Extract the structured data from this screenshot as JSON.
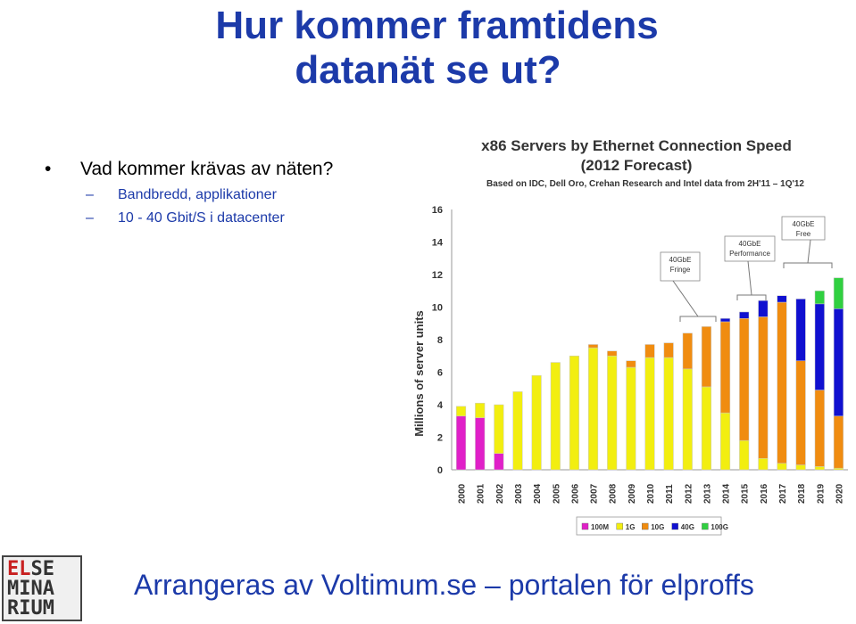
{
  "slide": {
    "title_line1": "Hur kommer framtidens",
    "title_line2": "datanät se ut?",
    "bullet": "Vad kommer krävas av näten?",
    "sub1": "Bandbredd, applikationer",
    "sub2": "10 - 40 Gbit/S i datacenter",
    "footer": "Arrangeras av Voltimum.se – portalen för elproffs",
    "logo_line1_red": "EL",
    "logo_line1_rest": "SE",
    "logo_line2": "MINA",
    "logo_line3": "RIUM"
  },
  "colors": {
    "title": "#1c3aa9",
    "100M": "#e020c8",
    "1G": "#f2ee10",
    "10G": "#f08c10",
    "40G": "#1010d0",
    "100G": "#30d040"
  },
  "chart_data": {
    "type": "bar",
    "stacked": true,
    "title": "x86 Servers by Ethernet Connection Speed",
    "subtitle": "(2012 Forecast)",
    "source": "Based on IDC, Dell Oro, Crehan Research and Intel data from 2H'11 – 1Q'12",
    "ylabel": "Millions of server units",
    "xlabel": "",
    "ylim": [
      0,
      16
    ],
    "yticks": [
      0,
      2,
      4,
      6,
      8,
      10,
      12,
      14,
      16
    ],
    "categories": [
      "2000",
      "2001",
      "2002",
      "2003",
      "2004",
      "2005",
      "2006",
      "2007",
      "2008",
      "2009",
      "2010",
      "2011",
      "2012",
      "2013",
      "2014",
      "2015",
      "2016",
      "2017",
      "2018",
      "2019",
      "2020"
    ],
    "series": [
      {
        "name": "100M",
        "values": [
          3.3,
          3.2,
          1.0,
          0,
          0,
          0,
          0,
          0,
          0,
          0,
          0,
          0,
          0,
          0,
          0,
          0,
          0,
          0,
          0,
          0,
          0
        ]
      },
      {
        "name": "1G",
        "values": [
          0.6,
          0.9,
          3.0,
          4.8,
          5.8,
          6.6,
          7.0,
          7.5,
          7.0,
          6.3,
          6.9,
          6.9,
          6.2,
          5.1,
          3.5,
          1.8,
          0.7,
          0.4,
          0.3,
          0.2,
          0.1
        ]
      },
      {
        "name": "10G",
        "values": [
          0,
          0,
          0,
          0,
          0,
          0,
          0,
          0.2,
          0.3,
          0.4,
          0.8,
          0.9,
          2.2,
          3.7,
          5.6,
          7.5,
          8.7,
          9.9,
          6.4,
          4.7,
          3.2
        ]
      },
      {
        "name": "40G",
        "values": [
          0,
          0,
          0,
          0,
          0,
          0,
          0,
          0,
          0,
          0,
          0,
          0,
          0,
          0,
          0.2,
          0.4,
          1.0,
          0.4,
          3.8,
          5.3,
          6.6
        ]
      },
      {
        "name": "100G",
        "values": [
          0,
          0,
          0,
          0,
          0,
          0,
          0,
          0,
          0,
          0,
          0,
          0,
          0,
          0,
          0,
          0,
          0,
          0,
          0,
          0.8,
          1.9
        ]
      }
    ],
    "annotations": [
      "40GbE Fringe",
      "40GbE Performance",
      "40GbE Free"
    ],
    "legend_position": "bottom",
    "grid": false
  }
}
